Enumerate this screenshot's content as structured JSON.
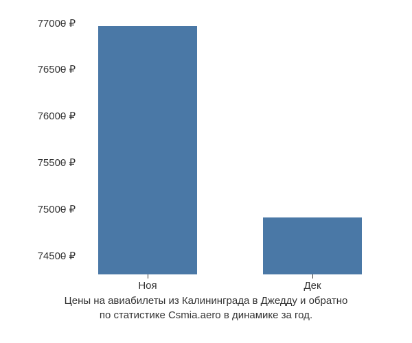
{
  "chart": {
    "type": "bar",
    "categories": [
      "Ноя",
      "Дек"
    ],
    "values": [
      76970,
      74910
    ],
    "bar_color": "#4a78a6",
    "background_color": "#ffffff",
    "y_axis": {
      "min": 74300,
      "max": 77100,
      "ticks": [
        74500,
        75000,
        75500,
        76000,
        76500,
        77000
      ],
      "tick_labels": [
        "74500 ₽",
        "75000 ₽",
        "75500 ₽",
        "76000 ₽",
        "76500 ₽",
        "77000 ₽"
      ],
      "label_fontsize": 15,
      "label_color": "#333333"
    },
    "x_axis": {
      "label_fontsize": 15,
      "label_color": "#333333"
    },
    "bar_width": 0.6,
    "caption_line1": "Цены на авиабилеты из Калининграда в Джедду и обратно",
    "caption_line2": "по статистике Csmia.aero в динамике за год.",
    "caption_fontsize": 15,
    "caption_color": "#333333"
  }
}
